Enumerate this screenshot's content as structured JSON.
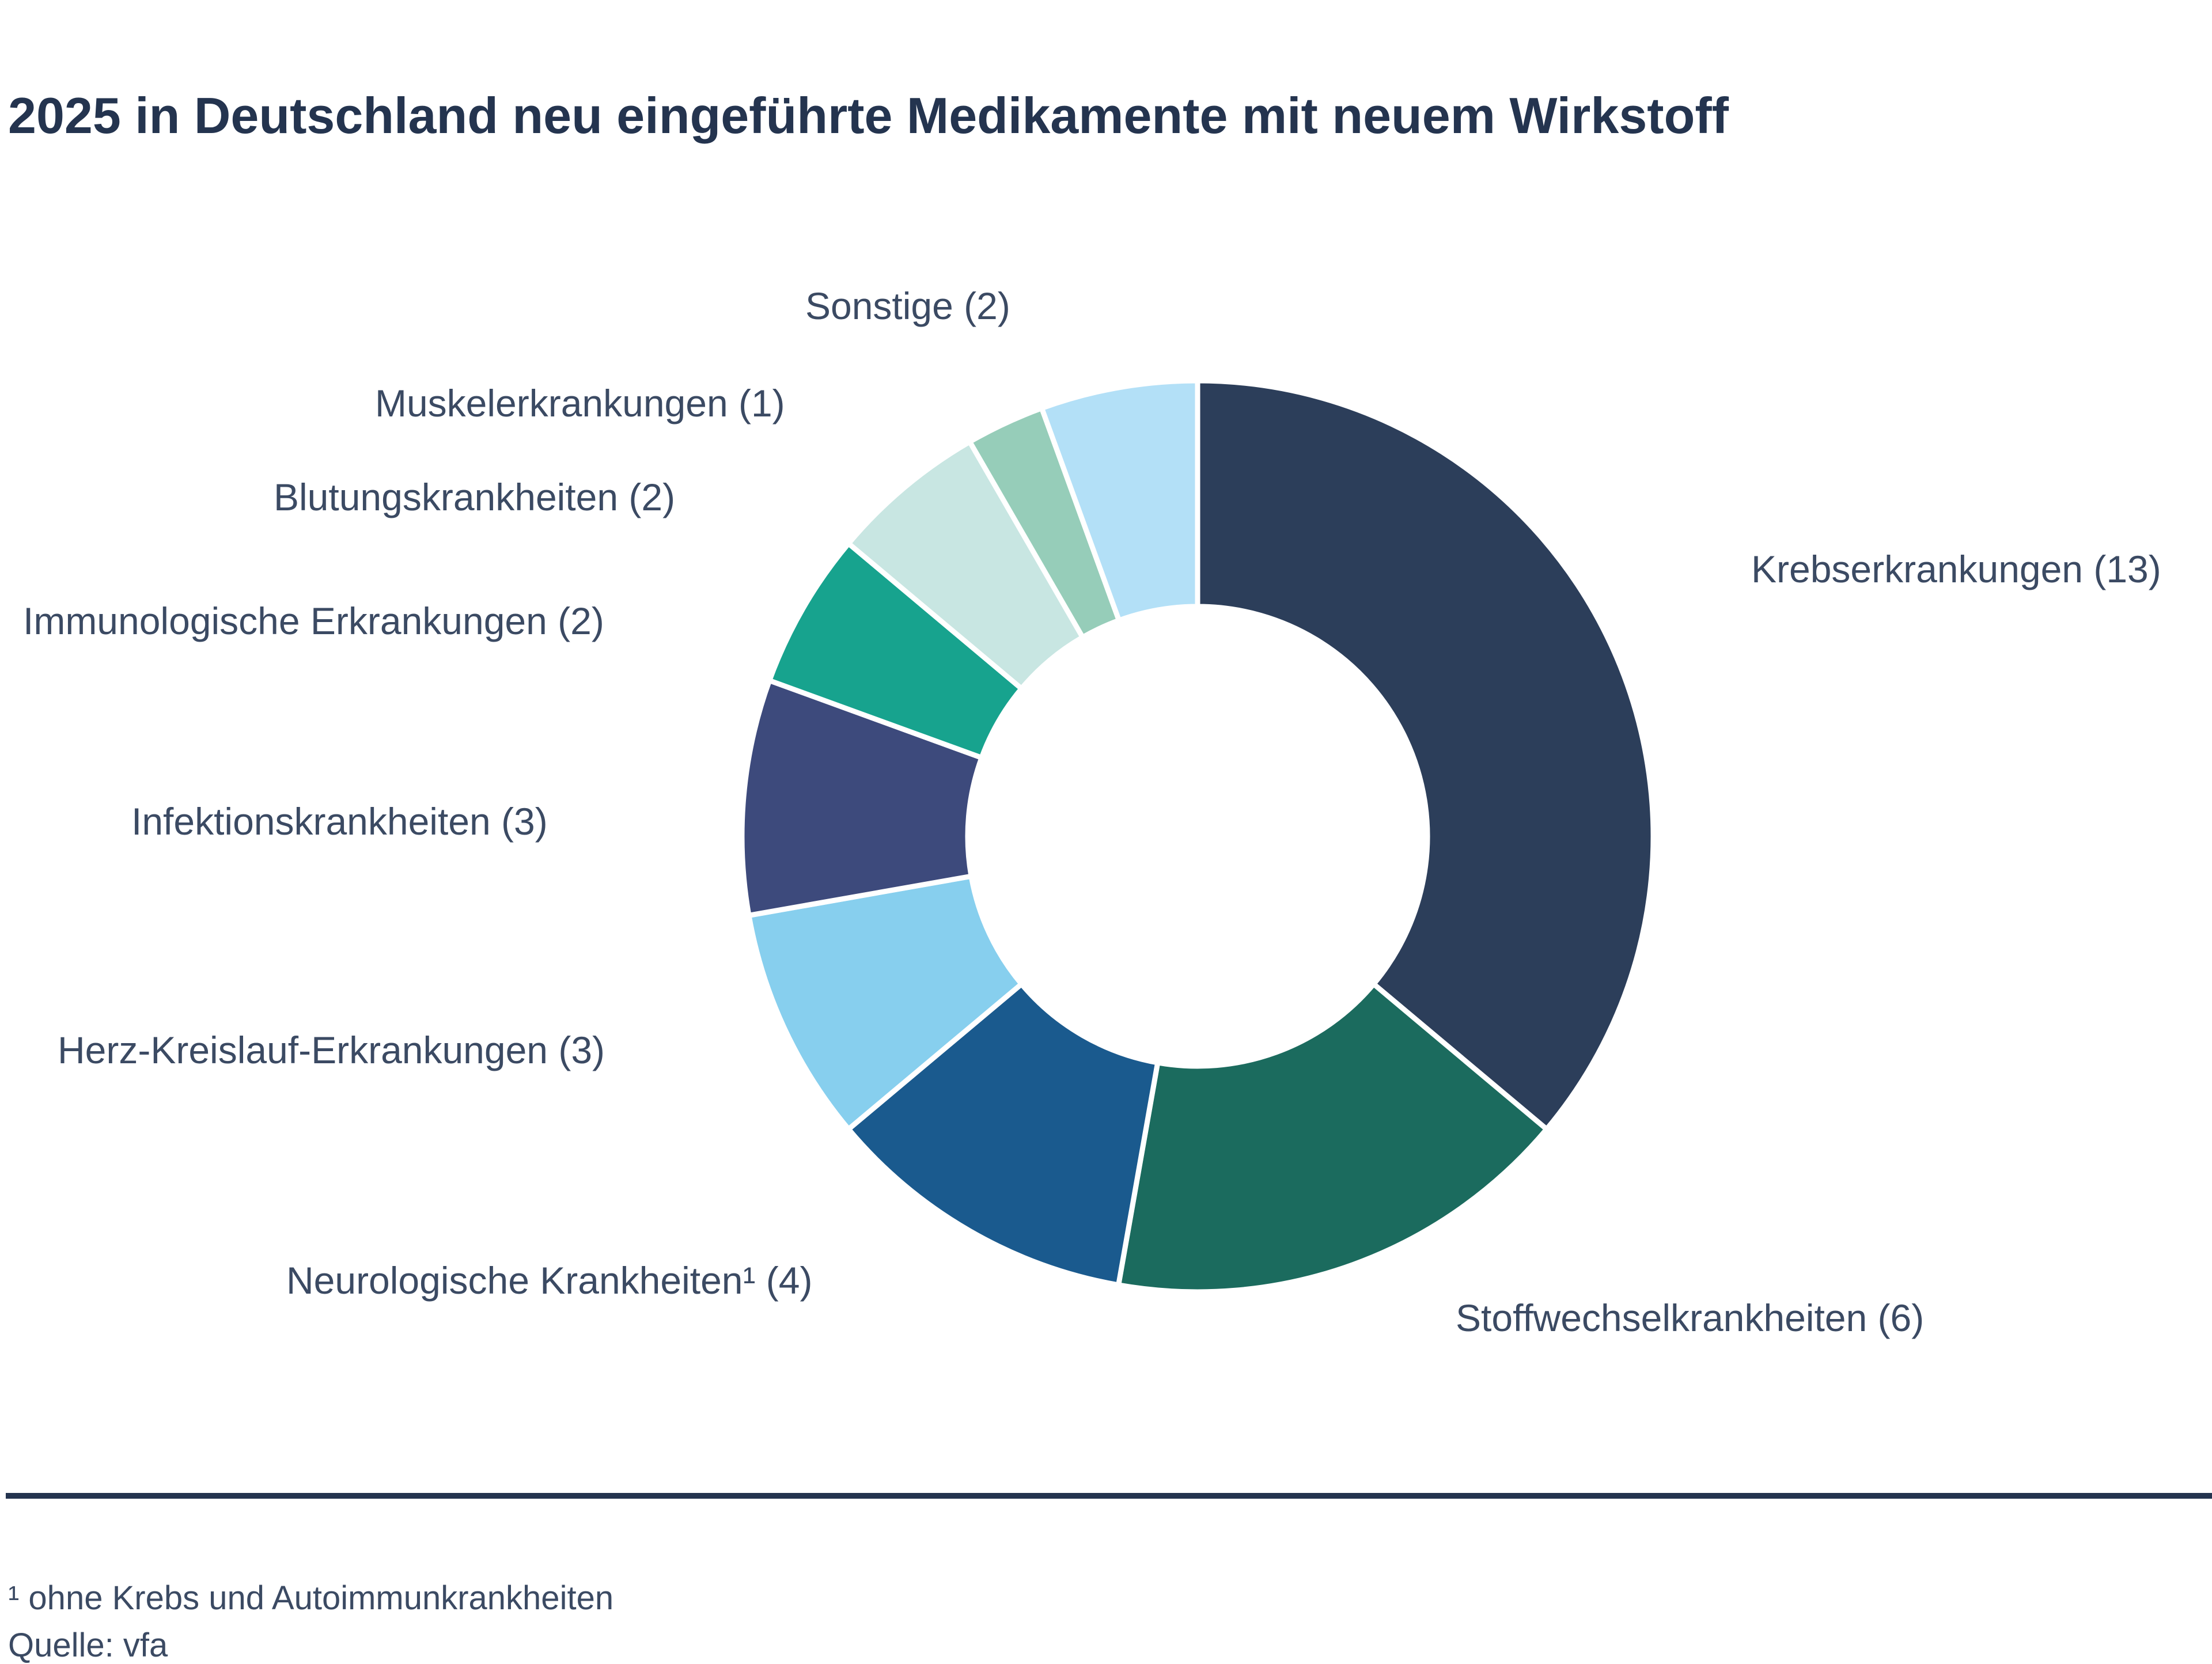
{
  "chart_data": {
    "type": "pie",
    "donut": true,
    "title": "2025 in Deutschland neu eingeführte Medikamente mit neuem Wirkstoff",
    "start": "top, clockwise",
    "slices": [
      {
        "label": "Krebserkrankungen (13)",
        "value": 13,
        "color": "#2c3e5a"
      },
      {
        "label": "Stoffwechselkrankheiten (6)",
        "value": 6,
        "color": "#1b6b5e"
      },
      {
        "label": "Neurologische Krankheiten¹ (4)",
        "value": 4,
        "color": "#1a5a8e"
      },
      {
        "label": "Herz-Kreislauf-Erkrankungen (3)",
        "value": 3,
        "color": "#87cfee"
      },
      {
        "label": "Infektionskrankheiten (3)",
        "value": 3,
        "color": "#3d4a7c"
      },
      {
        "label": "Immunologische Erkrankungen (2)",
        "value": 2,
        "color": "#17a38e"
      },
      {
        "label": "Blutungskrankheiten (2)",
        "value": 2,
        "color": "#c8e6e2"
      },
      {
        "label": "Muskelerkrankungen (1)",
        "value": 1,
        "color": "#96cdb9"
      },
      {
        "label": "Sonstige (2)",
        "value": 2,
        "color": "#b3e0f7"
      }
    ],
    "footnote": "¹ ohne Krebs und Autoimmunkrankheiten",
    "source": "Quelle: vfa"
  }
}
